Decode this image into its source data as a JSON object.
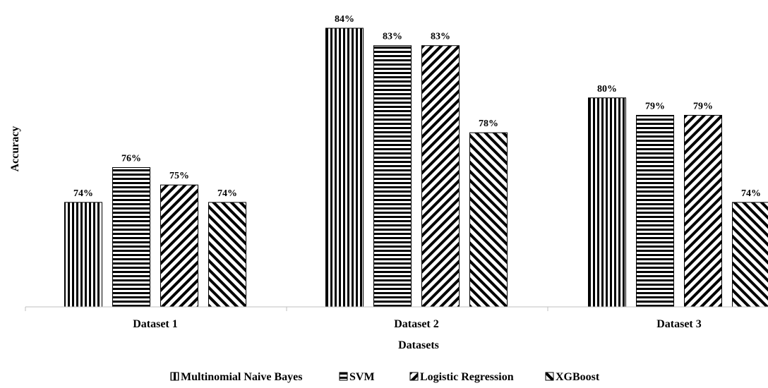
{
  "chart_data": {
    "type": "bar",
    "categories": [
      "Dataset 1",
      "Dataset 2",
      "Dataset 3"
    ],
    "series": [
      {
        "name": "Multinomial Naive Bayes",
        "values": [
          74,
          84,
          80
        ],
        "pattern": "vertical"
      },
      {
        "name": "SVM",
        "values": [
          76,
          83,
          79
        ],
        "pattern": "horizontal"
      },
      {
        "name": "Logistic Regression",
        "values": [
          75,
          83,
          79
        ],
        "pattern": "diag-down"
      },
      {
        "name": "XGBoost",
        "values": [
          74,
          78,
          74
        ],
        "pattern": "diag-up"
      }
    ],
    "value_suffix": "%",
    "xlabel": "Datasets",
    "ylabel": "Accuracy",
    "ylim": [
      68,
      84
    ],
    "grid": false,
    "legend": "bottom"
  },
  "colors": {
    "bar_fill": "#ffffff",
    "stroke": "#000000",
    "axis": "#bfbfbf"
  }
}
